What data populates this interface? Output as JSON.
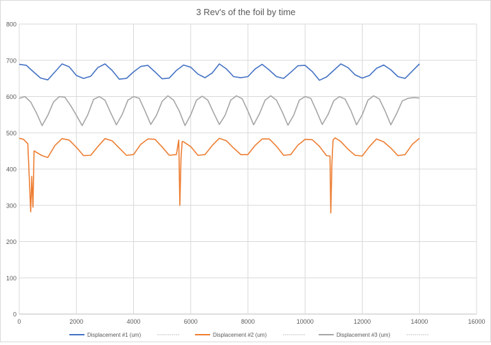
{
  "chart_data": {
    "type": "line",
    "title": "3 Rev's of the foil by time",
    "xlabel": "",
    "ylabel": "",
    "xlim": [
      0,
      16000
    ],
    "ylim": [
      0,
      800
    ],
    "xticks": [
      0,
      2000,
      4000,
      6000,
      8000,
      10000,
      12000,
      14000,
      16000
    ],
    "yticks": [
      0,
      100,
      200,
      300,
      400,
      500,
      600,
      700,
      800
    ],
    "grid": true,
    "legend_position": "bottom",
    "series": [
      {
        "name": "Displacement #1      (um)",
        "color": "#4472C4",
        "x": [
          0,
          250,
          500,
          750,
          1000,
          1250,
          1500,
          1750,
          2000,
          2250,
          2500,
          2750,
          3000,
          3250,
          3500,
          3750,
          4000,
          4250,
          4500,
          4750,
          5000,
          5250,
          5500,
          5750,
          6000,
          6250,
          6500,
          6750,
          7000,
          7250,
          7500,
          7750,
          8000,
          8250,
          8500,
          8750,
          9000,
          9250,
          9500,
          9750,
          10000,
          10250,
          10500,
          10750,
          11000,
          11250,
          11500,
          11750,
          12000,
          12250,
          12500,
          12750,
          13000,
          13250,
          13500,
          13750,
          14000
        ],
        "y": [
          689,
          686,
          668,
          651,
          646,
          668,
          690,
          682,
          658,
          650,
          656,
          680,
          690,
          672,
          648,
          650,
          668,
          683,
          686,
          668,
          649,
          651,
          672,
          687,
          681,
          662,
          652,
          665,
          690,
          676,
          655,
          652,
          655,
          676,
          689,
          673,
          655,
          650,
          667,
          685,
          686,
          669,
          645,
          654,
          672,
          690,
          680,
          660,
          651,
          658,
          678,
          687,
          674,
          655,
          650,
          670,
          690
        ]
      },
      {
        "name": "Displacement #2      (um)",
        "color": "#ED7D31",
        "x": [
          0,
          150,
          300,
          360,
          400,
          440,
          480,
          520,
          800,
          1000,
          1250,
          1500,
          1750,
          2000,
          2250,
          2500,
          2750,
          3000,
          3250,
          3500,
          3750,
          4000,
          4250,
          4500,
          4750,
          5000,
          5250,
          5500,
          5580,
          5620,
          5660,
          5700,
          5750,
          6000,
          6250,
          6500,
          6750,
          7000,
          7250,
          7500,
          7750,
          8000,
          8250,
          8500,
          8750,
          9000,
          9250,
          9500,
          9750,
          10000,
          10250,
          10500,
          10750,
          10870,
          10900,
          10940,
          10980,
          11050,
          11250,
          11500,
          11750,
          12000,
          12250,
          12500,
          12750,
          13000,
          13250,
          13500,
          13750,
          14000
        ],
        "y": [
          485,
          482,
          470,
          360,
          282,
          380,
          295,
          450,
          437,
          432,
          465,
          484,
          480,
          460,
          437,
          438,
          462,
          484,
          478,
          458,
          438,
          440,
          468,
          483,
          482,
          461,
          438,
          440,
          480,
          300,
          430,
          476,
          475,
          462,
          438,
          440,
          465,
          485,
          478,
          458,
          440,
          440,
          465,
          483,
          483,
          463,
          438,
          440,
          466,
          482,
          481,
          463,
          437,
          436,
          279,
          418,
          480,
          486,
          476,
          455,
          438,
          436,
          462,
          483,
          475,
          458,
          437,
          440,
          468,
          485
        ]
      },
      {
        "name": "Displacement #3      (um)",
        "color": "#A5A5A5",
        "x": [
          0,
          200,
          400,
          600,
          800,
          1000,
          1200,
          1400,
          1600,
          1800,
          2000,
          2200,
          2400,
          2600,
          2800,
          3000,
          3200,
          3400,
          3600,
          3800,
          4000,
          4200,
          4400,
          4600,
          4800,
          5000,
          5200,
          5400,
          5600,
          5800,
          6000,
          6200,
          6400,
          6600,
          6800,
          7000,
          7200,
          7400,
          7600,
          7800,
          8000,
          8200,
          8400,
          8600,
          8800,
          9000,
          9200,
          9400,
          9600,
          9800,
          10000,
          10200,
          10400,
          10600,
          10800,
          11000,
          11200,
          11400,
          11600,
          11800,
          12000,
          12200,
          12400,
          12600,
          12800,
          13000,
          13200,
          13400,
          13600,
          13800,
          14000
        ],
        "y": [
          595,
          600,
          585,
          555,
          520,
          548,
          585,
          600,
          598,
          575,
          548,
          520,
          550,
          592,
          600,
          590,
          555,
          522,
          550,
          590,
          600,
          595,
          560,
          523,
          548,
          587,
          602,
          590,
          560,
          520,
          550,
          590,
          601,
          590,
          555,
          523,
          548,
          590,
          602,
          594,
          560,
          522,
          552,
          590,
          602,
          590,
          558,
          521,
          548,
          590,
          600,
          595,
          560,
          523,
          550,
          588,
          600,
          593,
          562,
          522,
          550,
          590,
          602,
          593,
          560,
          522,
          552,
          588,
          595,
          597,
          596
        ]
      }
    ]
  }
}
